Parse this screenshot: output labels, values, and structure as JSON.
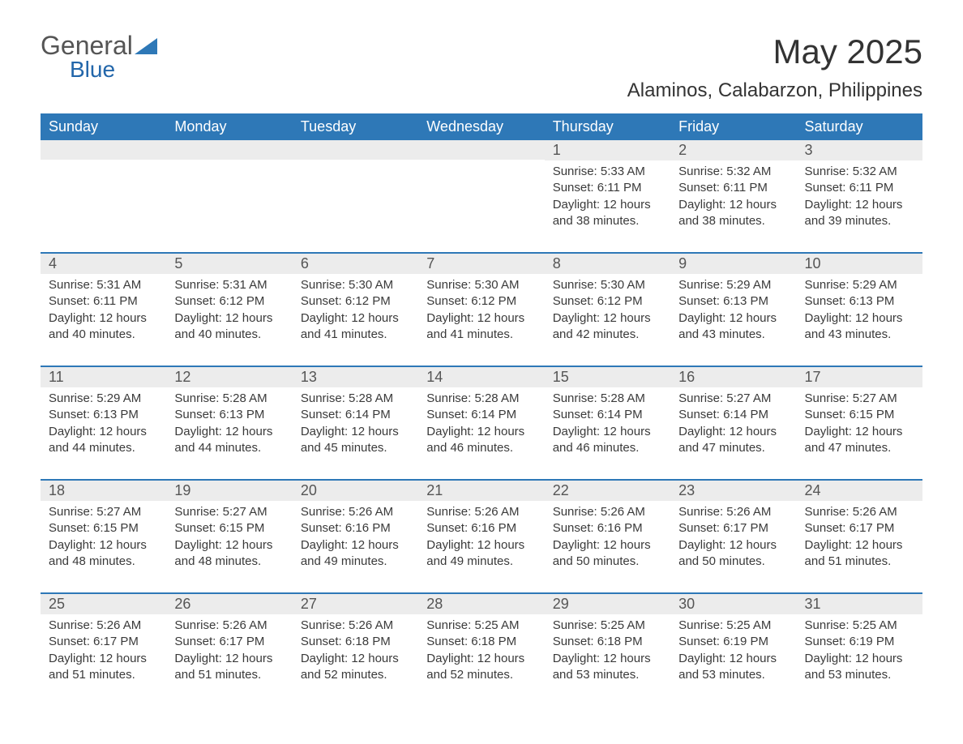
{
  "brand": {
    "general": "General",
    "blue": "Blue"
  },
  "title": "May 2025",
  "location": "Alaminos, Calabarzon, Philippines",
  "colors": {
    "header_bg": "#2e78b7",
    "header_text": "#ffffff",
    "daynum_bg": "#ececec",
    "row_divider": "#2e78b7",
    "body_text": "#3a3a3a"
  },
  "weekdays": [
    "Sunday",
    "Monday",
    "Tuesday",
    "Wednesday",
    "Thursday",
    "Friday",
    "Saturday"
  ],
  "weeks": [
    [
      null,
      null,
      null,
      null,
      {
        "n": "1",
        "sunrise": "Sunrise: 5:33 AM",
        "sunset": "Sunset: 6:11 PM",
        "daylight": "Daylight: 12 hours and 38 minutes."
      },
      {
        "n": "2",
        "sunrise": "Sunrise: 5:32 AM",
        "sunset": "Sunset: 6:11 PM",
        "daylight": "Daylight: 12 hours and 38 minutes."
      },
      {
        "n": "3",
        "sunrise": "Sunrise: 5:32 AM",
        "sunset": "Sunset: 6:11 PM",
        "daylight": "Daylight: 12 hours and 39 minutes."
      }
    ],
    [
      {
        "n": "4",
        "sunrise": "Sunrise: 5:31 AM",
        "sunset": "Sunset: 6:11 PM",
        "daylight": "Daylight: 12 hours and 40 minutes."
      },
      {
        "n": "5",
        "sunrise": "Sunrise: 5:31 AM",
        "sunset": "Sunset: 6:12 PM",
        "daylight": "Daylight: 12 hours and 40 minutes."
      },
      {
        "n": "6",
        "sunrise": "Sunrise: 5:30 AM",
        "sunset": "Sunset: 6:12 PM",
        "daylight": "Daylight: 12 hours and 41 minutes."
      },
      {
        "n": "7",
        "sunrise": "Sunrise: 5:30 AM",
        "sunset": "Sunset: 6:12 PM",
        "daylight": "Daylight: 12 hours and 41 minutes."
      },
      {
        "n": "8",
        "sunrise": "Sunrise: 5:30 AM",
        "sunset": "Sunset: 6:12 PM",
        "daylight": "Daylight: 12 hours and 42 minutes."
      },
      {
        "n": "9",
        "sunrise": "Sunrise: 5:29 AM",
        "sunset": "Sunset: 6:13 PM",
        "daylight": "Daylight: 12 hours and 43 minutes."
      },
      {
        "n": "10",
        "sunrise": "Sunrise: 5:29 AM",
        "sunset": "Sunset: 6:13 PM",
        "daylight": "Daylight: 12 hours and 43 minutes."
      }
    ],
    [
      {
        "n": "11",
        "sunrise": "Sunrise: 5:29 AM",
        "sunset": "Sunset: 6:13 PM",
        "daylight": "Daylight: 12 hours and 44 minutes."
      },
      {
        "n": "12",
        "sunrise": "Sunrise: 5:28 AM",
        "sunset": "Sunset: 6:13 PM",
        "daylight": "Daylight: 12 hours and 44 minutes."
      },
      {
        "n": "13",
        "sunrise": "Sunrise: 5:28 AM",
        "sunset": "Sunset: 6:14 PM",
        "daylight": "Daylight: 12 hours and 45 minutes."
      },
      {
        "n": "14",
        "sunrise": "Sunrise: 5:28 AM",
        "sunset": "Sunset: 6:14 PM",
        "daylight": "Daylight: 12 hours and 46 minutes."
      },
      {
        "n": "15",
        "sunrise": "Sunrise: 5:28 AM",
        "sunset": "Sunset: 6:14 PM",
        "daylight": "Daylight: 12 hours and 46 minutes."
      },
      {
        "n": "16",
        "sunrise": "Sunrise: 5:27 AM",
        "sunset": "Sunset: 6:14 PM",
        "daylight": "Daylight: 12 hours and 47 minutes."
      },
      {
        "n": "17",
        "sunrise": "Sunrise: 5:27 AM",
        "sunset": "Sunset: 6:15 PM",
        "daylight": "Daylight: 12 hours and 47 minutes."
      }
    ],
    [
      {
        "n": "18",
        "sunrise": "Sunrise: 5:27 AM",
        "sunset": "Sunset: 6:15 PM",
        "daylight": "Daylight: 12 hours and 48 minutes."
      },
      {
        "n": "19",
        "sunrise": "Sunrise: 5:27 AM",
        "sunset": "Sunset: 6:15 PM",
        "daylight": "Daylight: 12 hours and 48 minutes."
      },
      {
        "n": "20",
        "sunrise": "Sunrise: 5:26 AM",
        "sunset": "Sunset: 6:16 PM",
        "daylight": "Daylight: 12 hours and 49 minutes."
      },
      {
        "n": "21",
        "sunrise": "Sunrise: 5:26 AM",
        "sunset": "Sunset: 6:16 PM",
        "daylight": "Daylight: 12 hours and 49 minutes."
      },
      {
        "n": "22",
        "sunrise": "Sunrise: 5:26 AM",
        "sunset": "Sunset: 6:16 PM",
        "daylight": "Daylight: 12 hours and 50 minutes."
      },
      {
        "n": "23",
        "sunrise": "Sunrise: 5:26 AM",
        "sunset": "Sunset: 6:17 PM",
        "daylight": "Daylight: 12 hours and 50 minutes."
      },
      {
        "n": "24",
        "sunrise": "Sunrise: 5:26 AM",
        "sunset": "Sunset: 6:17 PM",
        "daylight": "Daylight: 12 hours and 51 minutes."
      }
    ],
    [
      {
        "n": "25",
        "sunrise": "Sunrise: 5:26 AM",
        "sunset": "Sunset: 6:17 PM",
        "daylight": "Daylight: 12 hours and 51 minutes."
      },
      {
        "n": "26",
        "sunrise": "Sunrise: 5:26 AM",
        "sunset": "Sunset: 6:17 PM",
        "daylight": "Daylight: 12 hours and 51 minutes."
      },
      {
        "n": "27",
        "sunrise": "Sunrise: 5:26 AM",
        "sunset": "Sunset: 6:18 PM",
        "daylight": "Daylight: 12 hours and 52 minutes."
      },
      {
        "n": "28",
        "sunrise": "Sunrise: 5:25 AM",
        "sunset": "Sunset: 6:18 PM",
        "daylight": "Daylight: 12 hours and 52 minutes."
      },
      {
        "n": "29",
        "sunrise": "Sunrise: 5:25 AM",
        "sunset": "Sunset: 6:18 PM",
        "daylight": "Daylight: 12 hours and 53 minutes."
      },
      {
        "n": "30",
        "sunrise": "Sunrise: 5:25 AM",
        "sunset": "Sunset: 6:19 PM",
        "daylight": "Daylight: 12 hours and 53 minutes."
      },
      {
        "n": "31",
        "sunrise": "Sunrise: 5:25 AM",
        "sunset": "Sunset: 6:19 PM",
        "daylight": "Daylight: 12 hours and 53 minutes."
      }
    ]
  ]
}
